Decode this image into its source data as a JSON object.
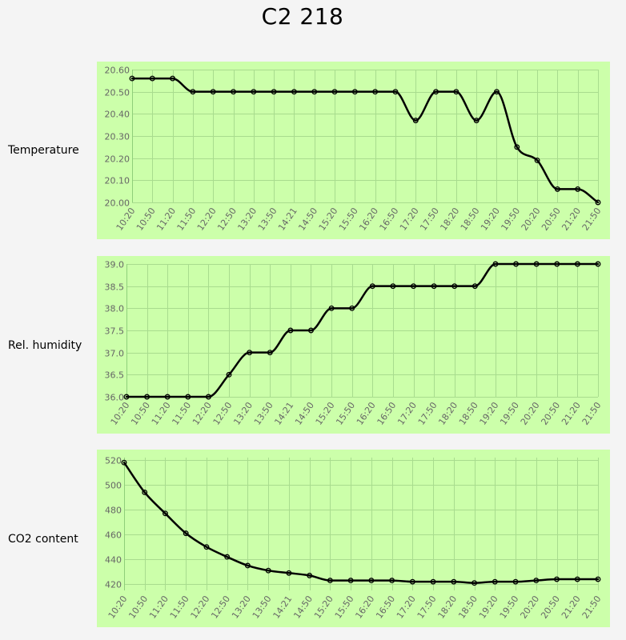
{
  "title": "C2 218",
  "chart_data": [
    {
      "type": "line",
      "row_label": "Temperature",
      "x": [
        "10:20",
        "10:50",
        "11:20",
        "11:50",
        "12:20",
        "12:50",
        "13:20",
        "13:50",
        "14:21",
        "14:50",
        "15:20",
        "15:50",
        "16:20",
        "16:50",
        "17:20",
        "17:50",
        "18:20",
        "18:50",
        "19:20",
        "19:50",
        "20:20",
        "20:50",
        "21:20",
        "21:50"
      ],
      "series": [
        {
          "values": [
            20.56,
            20.56,
            20.56,
            20.5,
            20.5,
            20.5,
            20.5,
            20.5,
            20.5,
            20.5,
            20.5,
            20.5,
            20.5,
            20.5,
            20.37,
            20.5,
            20.5,
            20.37,
            20.5,
            20.25,
            20.19,
            20.06,
            20.06,
            20.0
          ]
        }
      ],
      "ylim": [
        20.0,
        20.6
      ],
      "yticks": [
        "20.00",
        "20.10",
        "20.20",
        "20.30",
        "20.40",
        "20.50",
        "20.60"
      ],
      "grid": true,
      "background": "#ccffaa",
      "line_color": "#000000"
    },
    {
      "type": "line",
      "row_label": "Rel. humidity",
      "x": [
        "10:20",
        "10:50",
        "11:20",
        "11:50",
        "12:20",
        "12:50",
        "13:20",
        "13:50",
        "14:21",
        "14:50",
        "15:20",
        "15:50",
        "16:20",
        "16:50",
        "17:20",
        "17:50",
        "18:20",
        "18:50",
        "19:20",
        "19:50",
        "20:20",
        "20:50",
        "21:20",
        "21:50"
      ],
      "series": [
        {
          "values": [
            36.0,
            36.0,
            36.0,
            36.0,
            36.0,
            36.5,
            37.0,
            37.0,
            37.5,
            37.5,
            38.0,
            38.0,
            38.5,
            38.5,
            38.5,
            38.5,
            38.5,
            38.5,
            39.0,
            39.0,
            39.0,
            39.0,
            39.0,
            39.0
          ]
        }
      ],
      "ylim": [
        36.0,
        39.0
      ],
      "yticks": [
        "36.0",
        "36.5",
        "37.0",
        "37.5",
        "38.0",
        "38.5",
        "39.0"
      ],
      "grid": true,
      "background": "#ccffaa",
      "line_color": "#000000"
    },
    {
      "type": "line",
      "row_label": "CO2 content",
      "x": [
        "10:20",
        "10:50",
        "11:20",
        "11:50",
        "12:20",
        "12:50",
        "13:20",
        "13:50",
        "14:21",
        "14:50",
        "15:20",
        "15:50",
        "16:20",
        "16:50",
        "17:20",
        "17:50",
        "18:20",
        "18:50",
        "19:20",
        "19:50",
        "20:20",
        "20:50",
        "21:20",
        "21:50"
      ],
      "series": [
        {
          "values": [
            518,
            494,
            477,
            461,
            450,
            442,
            435,
            431,
            429,
            427,
            423,
            423,
            423,
            423,
            422,
            422,
            422,
            421,
            422,
            422,
            423,
            424,
            424,
            424
          ]
        }
      ],
      "ylim": [
        415,
        522
      ],
      "yticks": [
        "420",
        "440",
        "460",
        "480",
        "500",
        "520"
      ],
      "grid": true,
      "background": "#ccffaa",
      "line_color": "#000000"
    }
  ]
}
